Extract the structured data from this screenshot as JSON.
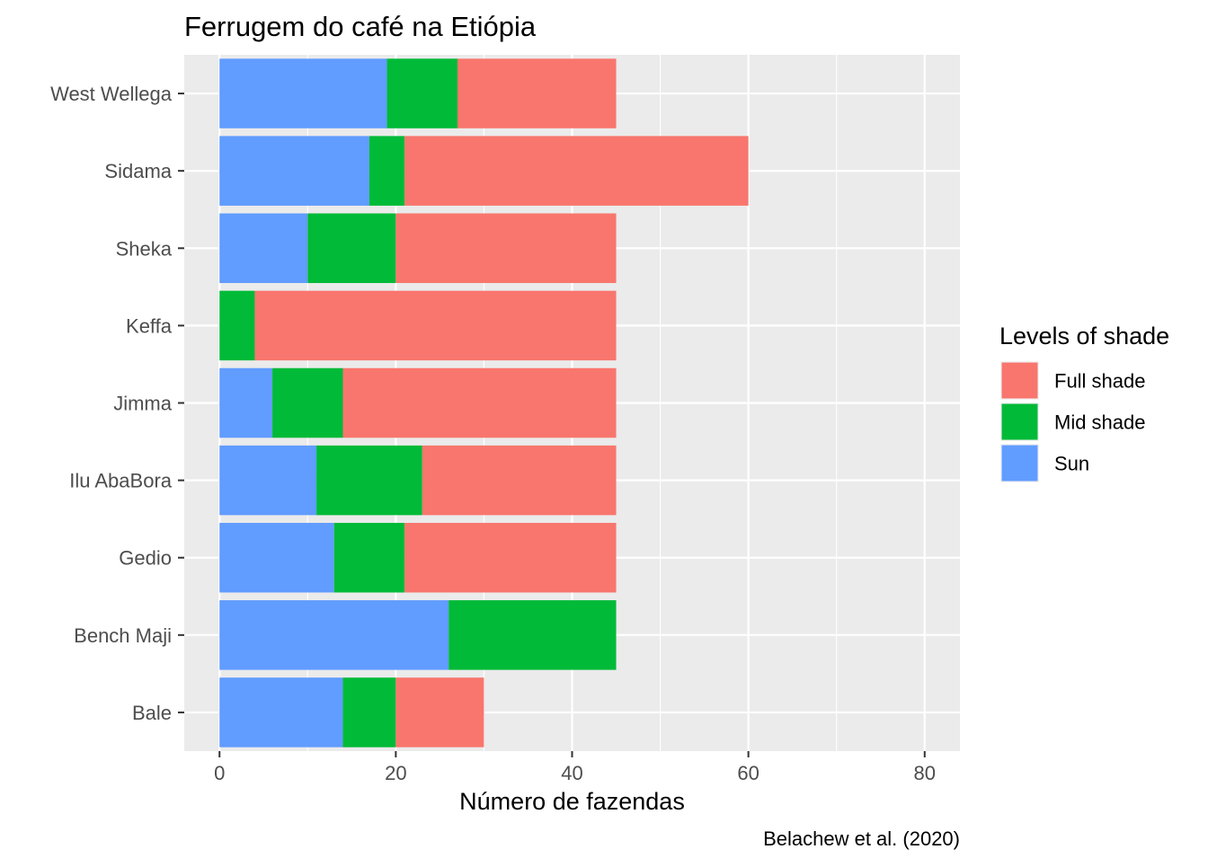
{
  "chart_data": {
    "type": "bar",
    "orientation": "horizontal",
    "stacked": true,
    "title": "Ferrugem do café na Etiópia",
    "xlabel": "Número de fazendas",
    "ylabel": "",
    "caption": "Belachew et al. (2020)",
    "xlim": [
      -4,
      84
    ],
    "x_ticks": [
      0,
      20,
      40,
      60,
      80
    ],
    "grid": true,
    "categories": [
      "West Wellega",
      "Sidama",
      "Sheka",
      "Keffa",
      "Jimma",
      "Ilu AbaBora",
      "Gedio",
      "Bench Maji",
      "Bale"
    ],
    "series": [
      {
        "name": "Sun",
        "color": "#619CFF",
        "values": [
          19,
          17,
          10,
          0,
          6,
          11,
          13,
          26,
          14
        ]
      },
      {
        "name": "Mid shade",
        "color": "#00BA38",
        "values": [
          8,
          4,
          10,
          4,
          8,
          12,
          8,
          19,
          6
        ]
      },
      {
        "name": "Full shade",
        "color": "#F8766D",
        "values": [
          18,
          39,
          25,
          41,
          31,
          22,
          24,
          0,
          10
        ]
      }
    ],
    "legend": {
      "title": "Levels of shade",
      "position": "right",
      "order": [
        "Full shade",
        "Mid shade",
        "Sun"
      ]
    }
  }
}
